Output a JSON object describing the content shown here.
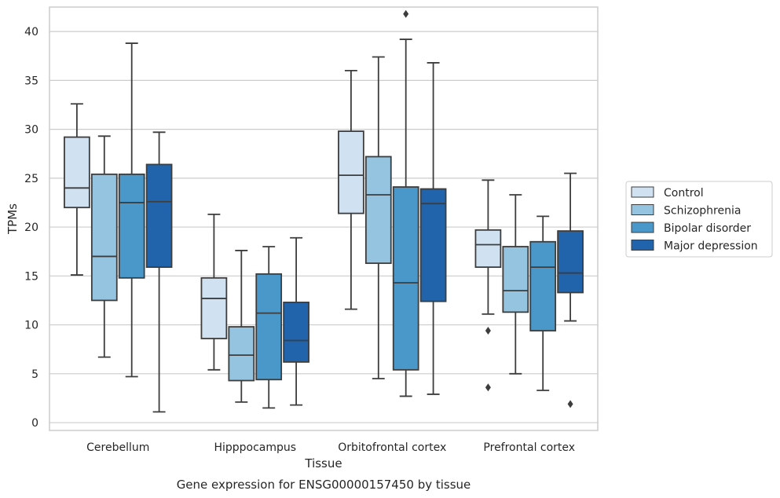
{
  "chart_data": {
    "type": "box",
    "title": "",
    "caption": "Gene expression for ENSG00000157450 by tissue",
    "xlabel": "Tissue",
    "ylabel": "TPMs",
    "ylim": [
      -0.8,
      42.5
    ],
    "yticks": [
      0,
      5,
      10,
      15,
      20,
      25,
      30,
      35,
      40
    ],
    "grid": "horizontal",
    "legend_placement": "right",
    "categories": [
      "Cerebellum",
      "Hipppocampus",
      "Orbitofrontal cortex",
      "Prefrontal cortex"
    ],
    "series": [
      {
        "name": "Control",
        "color": "#d0e1f2",
        "boxes": [
          {
            "whisker_low": 15.1,
            "q1": 22.0,
            "median": 24.0,
            "q3": 29.2,
            "whisker_high": 32.6,
            "outliers": []
          },
          {
            "whisker_low": 5.4,
            "q1": 8.6,
            "median": 12.7,
            "q3": 14.8,
            "whisker_high": 21.3,
            "outliers": []
          },
          {
            "whisker_low": 11.6,
            "q1": 21.4,
            "median": 25.3,
            "q3": 29.8,
            "whisker_high": 36.0,
            "outliers": []
          },
          {
            "whisker_low": 11.1,
            "q1": 15.9,
            "median": 18.2,
            "q3": 19.7,
            "whisker_high": 24.8,
            "outliers": [
              9.4,
              3.6
            ]
          }
        ]
      },
      {
        "name": "Schizophrenia",
        "color": "#94c4df",
        "boxes": [
          {
            "whisker_low": 6.7,
            "q1": 12.5,
            "median": 17.0,
            "q3": 25.4,
            "whisker_high": 29.3,
            "outliers": []
          },
          {
            "whisker_low": 2.1,
            "q1": 4.3,
            "median": 6.9,
            "q3": 9.8,
            "whisker_high": 17.6,
            "outliers": []
          },
          {
            "whisker_low": 4.5,
            "q1": 16.3,
            "median": 23.3,
            "q3": 27.2,
            "whisker_high": 37.4,
            "outliers": []
          },
          {
            "whisker_low": 5.0,
            "q1": 11.3,
            "median": 13.5,
            "q3": 18.0,
            "whisker_high": 23.3,
            "outliers": []
          }
        ]
      },
      {
        "name": "Bipolar disorder",
        "color": "#4a98c9",
        "boxes": [
          {
            "whisker_low": 4.7,
            "q1": 14.8,
            "median": 22.5,
            "q3": 25.4,
            "whisker_high": 38.8,
            "outliers": []
          },
          {
            "whisker_low": 1.5,
            "q1": 4.4,
            "median": 11.2,
            "q3": 15.2,
            "whisker_high": 18.0,
            "outliers": []
          },
          {
            "whisker_low": 2.7,
            "q1": 5.4,
            "median": 14.3,
            "q3": 24.1,
            "whisker_high": 39.2,
            "outliers": [
              41.8
            ]
          },
          {
            "whisker_low": 3.3,
            "q1": 9.4,
            "median": 15.9,
            "q3": 18.5,
            "whisker_high": 21.1,
            "outliers": []
          }
        ]
      },
      {
        "name": "Major depression",
        "color": "#2164ab",
        "boxes": [
          {
            "whisker_low": 1.1,
            "q1": 15.9,
            "median": 22.6,
            "q3": 26.4,
            "whisker_high": 29.7,
            "outliers": []
          },
          {
            "whisker_low": 1.8,
            "q1": 6.2,
            "median": 8.4,
            "q3": 12.3,
            "whisker_high": 18.9,
            "outliers": []
          },
          {
            "whisker_low": 2.9,
            "q1": 12.4,
            "median": 22.4,
            "q3": 23.9,
            "whisker_high": 36.8,
            "outliers": []
          },
          {
            "whisker_low": 10.4,
            "q1": 13.3,
            "median": 15.3,
            "q3": 19.6,
            "whisker_high": 25.5,
            "outliers": [
              1.9
            ]
          }
        ]
      }
    ]
  }
}
